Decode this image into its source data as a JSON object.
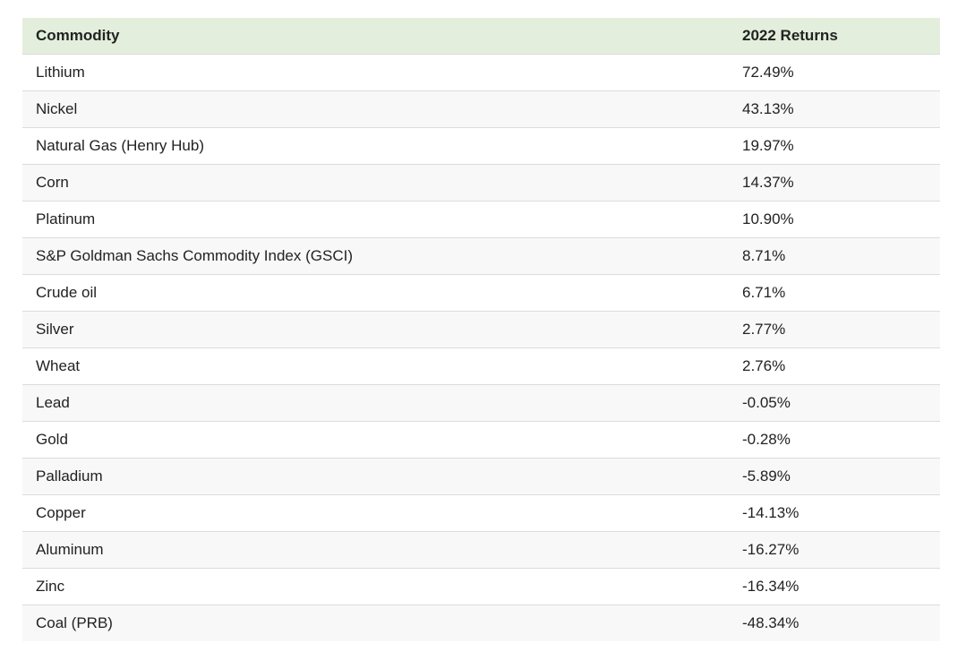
{
  "table": {
    "headers": [
      "Commodity",
      "2022 Returns"
    ],
    "rows": [
      [
        "Lithium",
        "72.49%"
      ],
      [
        "Nickel",
        "43.13%"
      ],
      [
        "Natural Gas (Henry Hub)",
        "19.97%"
      ],
      [
        "Corn",
        "14.37%"
      ],
      [
        "Platinum",
        "10.90%"
      ],
      [
        "S&P Goldman Sachs Commodity Index (GSCI)",
        "8.71%"
      ],
      [
        "Crude oil",
        "6.71%"
      ],
      [
        "Silver",
        "2.77%"
      ],
      [
        "Wheat",
        "2.76%"
      ],
      [
        "Lead",
        "-0.05%"
      ],
      [
        "Gold",
        "-0.28%"
      ],
      [
        "Palladium",
        "-5.89%"
      ],
      [
        "Copper",
        "-14.13%"
      ],
      [
        "Aluminum",
        "-16.27%"
      ],
      [
        "Zinc",
        "-16.34%"
      ],
      [
        "Coal (PRB)",
        "-48.34%"
      ]
    ]
  },
  "colors": {
    "header_background": "#e3efdc",
    "row_alt_background": "#f8f8f8",
    "row_border": "#dcdcdc",
    "text": "#222222"
  }
}
